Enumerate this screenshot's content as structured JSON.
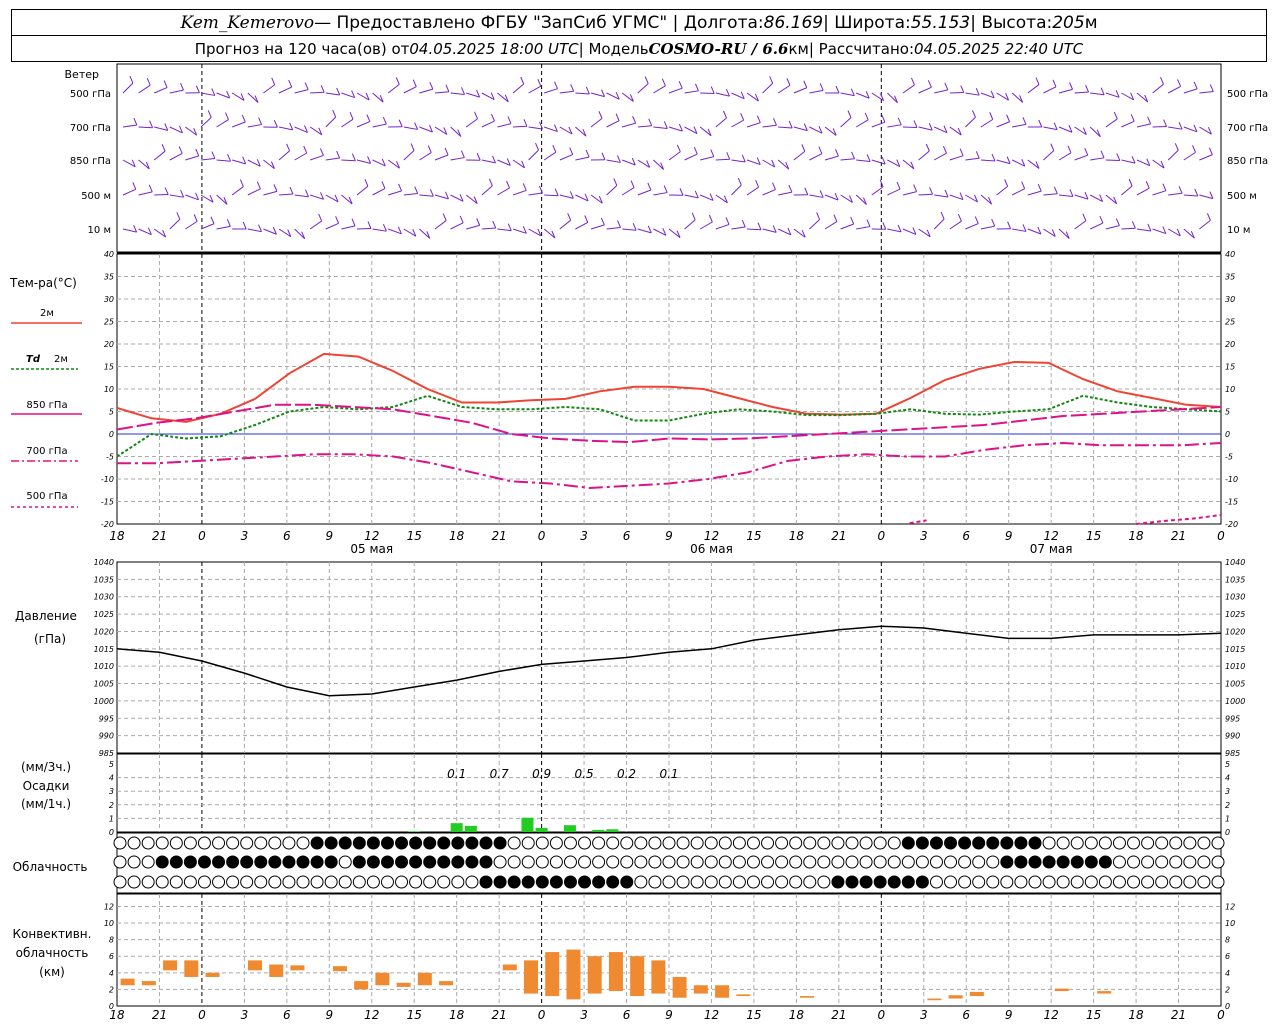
{
  "header": {
    "station": "Kem_Kemerovo",
    "provider": " — Предоставлено ФГБУ \"ЗапСиб УГМС\" | Долгота: ",
    "lon": "86.169",
    "lat_label": " | Широта: ",
    "lat": "55.153",
    "alt_label": " | Высота: ",
    "alt": "205",
    "alt_unit": "м",
    "forecast_prefix": "Прогноз на 120 часа(ов) от ",
    "forecast_start": "04.05.2025 18:00 UTC",
    "model_prefix": " | Модель ",
    "model": "COSMO-RU / 6.6",
    "model_unit": "км",
    "calc_prefix": " | Рассчитано: ",
    "calc_time": "04.05.2025 22:40 UTC"
  },
  "colors": {
    "t2m": "#ee4433",
    "td2m": "#118811",
    "t850": "#dd1188",
    "t700": "#dd1188",
    "t500": "#dd1188",
    "wind": "#7722cc",
    "pressure": "#000000",
    "precip": "#22cc22",
    "conv": "#f08a30",
    "zero_line": "#2233dd"
  },
  "labels": {
    "wind": "Ветер",
    "wind_levels": [
      "500 гПа",
      "700 гПа",
      "850 гПа",
      "500 м",
      "10 м"
    ],
    "temp_title": "Тем-ра(°С)",
    "legend_2m": "2м",
    "legend_td_a": "Td",
    "legend_td_b": "2м",
    "legend_850": "850 гПа",
    "legend_700": "700 гПа",
    "legend_500": "500 гПа",
    "pressure_title": "Давление",
    "pressure_unit": "(гПа)",
    "precip_a": "(мм/3ч.)",
    "precip_b": "Осадки",
    "precip_c": "(мм/1ч.)",
    "cloud": "Облачность",
    "conv_a": "Конвективн.",
    "conv_b": "облачность",
    "conv_c": "(км)"
  },
  "chart_data": {
    "x_hours_utc": [
      "18",
      "21",
      "0",
      "3",
      "6",
      "9",
      "12",
      "15",
      "18",
      "21",
      "0",
      "3",
      "6",
      "9",
      "12",
      "15",
      "18",
      "21",
      "0",
      "3",
      "6",
      "9",
      "12",
      "15",
      "18",
      "21",
      "0"
    ],
    "days": [
      "05 мая",
      "06 мая",
      "07 мая"
    ],
    "panels": [
      {
        "type": "line",
        "title": "Тем-ра(°С)",
        "ylim": [
          -20,
          40
        ],
        "yticks": [
          -20,
          -15,
          -10,
          -5,
          0,
          5,
          10,
          15,
          20,
          25,
          30,
          35,
          40
        ],
        "x_step_hours": 3,
        "series": [
          {
            "name": "2м",
            "values": [
              5.8,
              3.5,
              2.7,
              4.5,
              7.8,
              13.5,
              17.8,
              17.2,
              14,
              10,
              7,
              7,
              7.5,
              7.8,
              9.5,
              10.5,
              10.5,
              10,
              8,
              6,
              4.5,
              4.3,
              4.5,
              8,
              12,
              14.5,
              16,
              15.8,
              12.2,
              9.5,
              8,
              6.5,
              6
            ]
          },
          {
            "name": "Td 2м",
            "values": [
              -5,
              0,
              -1,
              -0.5,
              2,
              5,
              6,
              5.5,
              6,
              8.5,
              6,
              5.5,
              5.5,
              6,
              5.5,
              3,
              3,
              4.5,
              5.5,
              5,
              4.2,
              4.2,
              4.5,
              5.5,
              4.5,
              4.3,
              5,
              5.5,
              8.5,
              7,
              6,
              5.5,
              5
            ]
          },
          {
            "name": "850 гПа",
            "values": [
              1,
              2.5,
              3.5,
              5,
              6.5,
              6.5,
              6,
              5.5,
              4,
              2.5,
              0,
              -1,
              -1.5,
              -1.8,
              -1,
              -1.2,
              -1,
              -0.5,
              0,
              0.5,
              1,
              1.5,
              2,
              3,
              4,
              4.5,
              5,
              5.5,
              6
            ]
          },
          {
            "name": "700 гПа",
            "values": [
              -6.5,
              -6.5,
              -6,
              -5.5,
              -5,
              -4.5,
              -4.5,
              -5,
              -6.5,
              -8.5,
              -10.5,
              -11,
              -12,
              -11.5,
              -11,
              -10,
              -8.5,
              -6,
              -5,
              -4.5,
              -5,
              -5,
              -3.5,
              -2.5,
              -2,
              -2.5,
              -2.5,
              -2.5,
              -2
            ]
          },
          {
            "name": "500 гПа",
            "values": [
              -21,
              -20.5,
              -20.5,
              -19.5,
              -18,
              -17.5
            ]
          }
        ]
      },
      {
        "type": "line",
        "title": "Давление",
        "ylim": [
          985,
          1040
        ],
        "yticks": [
          985,
          990,
          995,
          1000,
          1005,
          1010,
          1015,
          1020,
          1025,
          1030,
          1035,
          1040
        ],
        "series": [
          {
            "name": "pressure",
            "values": [
              1015,
              1014,
              1011.5,
              1008,
              1004,
              1001.5,
              1002,
              1004,
              1006,
              1008.5,
              1010.5,
              1011.5,
              1012.5,
              1014,
              1015,
              1017.5,
              1019,
              1020.5,
              1021.5,
              1021,
              1019.5,
              1018,
              1018,
              1019,
              1019,
              1019,
              1019.5
            ]
          }
        ]
      },
      {
        "type": "bar",
        "title": "Осадки",
        "ylim": [
          0,
          5
        ],
        "yticks": [
          0,
          1,
          2,
          3,
          4,
          5
        ],
        "labels_3h": [
          "0.1",
          "0.7",
          "0.9",
          "0.5",
          "0.2",
          "0.1"
        ],
        "bars_1h": [
          0.05,
          0.65,
          0.45,
          1.05,
          0.3,
          0.5,
          0.15,
          0.2
        ]
      },
      {
        "type": "table",
        "title": "Облачность",
        "rows": 3
      },
      {
        "type": "bar",
        "title": "Конвективн. облачность",
        "ylim": [
          0,
          13
        ],
        "yticks": [
          0,
          2,
          4,
          6,
          8,
          10,
          12
        ],
        "segments": [
          {
            "x": 0.25,
            "bottom": 2.5,
            "top": 3.3
          },
          {
            "x": 0.75,
            "bottom": 2.5,
            "top": 3
          },
          {
            "x": 1.25,
            "bottom": 4.3,
            "top": 5.5
          },
          {
            "x": 1.75,
            "bottom": 3.5,
            "top": 5.5
          },
          {
            "x": 2.25,
            "bottom": 3.5,
            "top": 4.0
          },
          {
            "x": 3.25,
            "bottom": 4.3,
            "top": 5.5
          },
          {
            "x": 3.75,
            "bottom": 3.5,
            "top": 5
          },
          {
            "x": 4.25,
            "bottom": 4.3,
            "top": 4.9
          },
          {
            "x": 5.25,
            "bottom": 4.2,
            "top": 4.8
          },
          {
            "x": 5.75,
            "bottom": 2,
            "top": 3
          },
          {
            "x": 6.25,
            "bottom": 2.5,
            "top": 4
          },
          {
            "x": 6.75,
            "bottom": 2.3,
            "top": 2.8
          },
          {
            "x": 7.25,
            "bottom": 2.5,
            "top": 4
          },
          {
            "x": 7.75,
            "bottom": 2.5,
            "top": 3
          },
          {
            "x": 9.25,
            "bottom": 4.3,
            "top": 5
          },
          {
            "x": 9.75,
            "bottom": 1.5,
            "top": 5.5
          },
          {
            "x": 10.25,
            "bottom": 1.2,
            "top": 6.5
          },
          {
            "x": 10.75,
            "bottom": 0.8,
            "top": 6.8
          },
          {
            "x": 11.25,
            "bottom": 1.5,
            "top": 6
          },
          {
            "x": 11.75,
            "bottom": 1.8,
            "top": 6.5
          },
          {
            "x": 12.25,
            "bottom": 1.2,
            "top": 6
          },
          {
            "x": 12.75,
            "bottom": 1.5,
            "top": 5.5
          },
          {
            "x": 13.25,
            "bottom": 1,
            "top": 3.5
          },
          {
            "x": 13.75,
            "bottom": 1.5,
            "top": 2.5
          },
          {
            "x": 14.25,
            "bottom": 1,
            "top": 2.5
          },
          {
            "x": 14.75,
            "bottom": 1.2,
            "top": 1.4
          },
          {
            "x": 16.25,
            "bottom": 1,
            "top": 1.2
          },
          {
            "x": 19.25,
            "bottom": 0.7,
            "top": 0.9
          },
          {
            "x": 19.75,
            "bottom": 0.9,
            "top": 1.3
          },
          {
            "x": 20.25,
            "bottom": 1.2,
            "top": 1.7
          },
          {
            "x": 22.25,
            "bottom": 1.8,
            "top": 2.1
          },
          {
            "x": 23.25,
            "bottom": 1.5,
            "top": 1.8
          }
        ]
      }
    ]
  }
}
